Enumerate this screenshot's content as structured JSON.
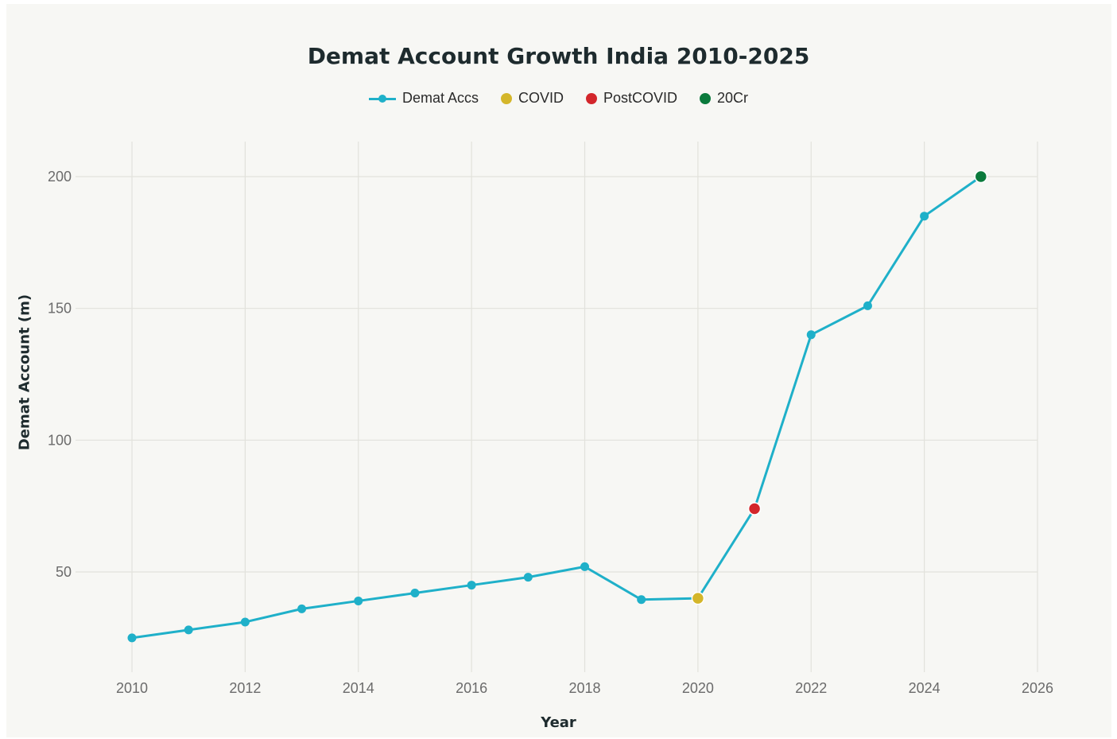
{
  "chart_data": {
    "type": "line",
    "title": "Demat Account Growth India 2010-2025",
    "xlabel": "Year",
    "ylabel": "Demat Account (m)",
    "xlim": [
      2009,
      2026
    ],
    "ylim": [
      10,
      213
    ],
    "x_ticks": [
      2010,
      2012,
      2014,
      2016,
      2018,
      2020,
      2022,
      2024,
      2026
    ],
    "y_ticks": [
      50,
      100,
      150,
      200
    ],
    "grid": true,
    "legend_position": "top-center",
    "series": [
      {
        "name": "Demat Accs",
        "color": "#1fb0c9",
        "x": [
          2010,
          2011,
          2012,
          2013,
          2014,
          2015,
          2016,
          2017,
          2018,
          2019,
          2020,
          2021,
          2022,
          2023,
          2024,
          2025
        ],
        "y": [
          25,
          28,
          31,
          36,
          39,
          42,
          45,
          48,
          52,
          39.5,
          40,
          74,
          140,
          151,
          185,
          200
        ]
      },
      {
        "name": "COVID",
        "color": "#d4b62a",
        "x": [
          2020
        ],
        "y": [
          40
        ]
      },
      {
        "name": "PostCOVID",
        "color": "#d3262b",
        "x": [
          2021
        ],
        "y": [
          74
        ]
      },
      {
        "name": "20Cr",
        "color": "#0b7a3c",
        "x": [
          2025
        ],
        "y": [
          200
        ]
      }
    ]
  }
}
